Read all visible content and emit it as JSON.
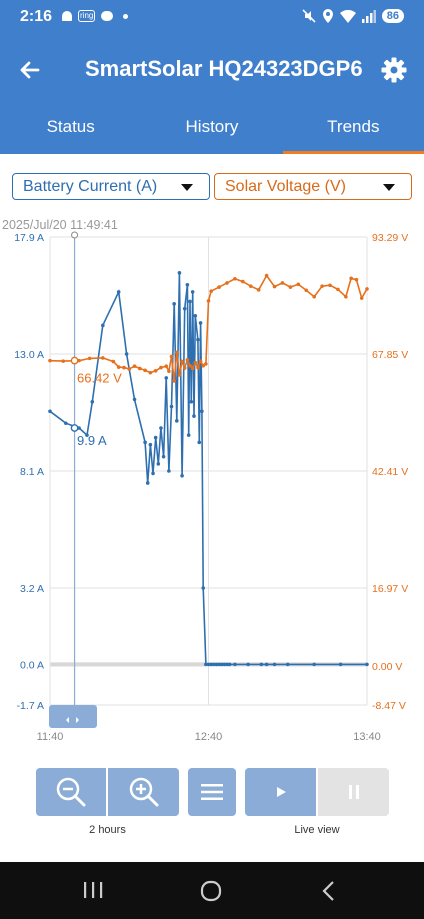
{
  "status_bar": {
    "time": "2:16",
    "ring_badge": "ring",
    "battery_level": "86",
    "icons": [
      "bell-icon",
      "ring-icon",
      "chat-icon",
      "dot-icon",
      "mute-icon",
      "location-icon",
      "wifi-icon",
      "signal-icon",
      "battery-icon"
    ]
  },
  "app_bar": {
    "title": "SmartSolar HQ24323DGP6",
    "back_icon": "arrow-left-icon",
    "settings_icon": "gear-icon"
  },
  "tabs": [
    {
      "label": "Status",
      "active": false
    },
    {
      "label": "History",
      "active": false
    },
    {
      "label": "Trends",
      "active": true
    }
  ],
  "selectors": {
    "left": {
      "value": "Battery Current (A)",
      "color": "#2f6fb0"
    },
    "right": {
      "value": "Solar Voltage (V)",
      "color": "#d86a1a"
    }
  },
  "chart_data": {
    "type": "line",
    "cursor_timestamp": "2025/Jul/20 11:49:41",
    "x_ticks": [
      "11:40",
      "12:40",
      "13:40"
    ],
    "left_axis": {
      "ticks": [
        "17.9 A",
        "13.0 A",
        "8.1 A",
        "3.2 A",
        "0.0 A",
        "-1.7 A"
      ],
      "ylim": [
        -1.7,
        17.9
      ]
    },
    "right_axis": {
      "ticks": [
        "93.29 V",
        "67.85 V",
        "42.41 V",
        "16.97 V",
        "0.00 V",
        "-8.47 V"
      ],
      "ylim": [
        -8.47,
        93.29
      ]
    },
    "cursor_labels": {
      "current": "9.9 A",
      "voltage": "66.42 V"
    },
    "colors": {
      "current": "#2e6fb0",
      "voltage": "#e5701e"
    },
    "series": [
      {
        "unit": "A",
        "x_minutes": [
          0,
          6,
          11,
          14,
          16,
          20,
          26,
          29,
          32,
          36,
          37,
          38,
          39,
          40,
          41,
          42,
          43,
          44,
          45,
          46,
          47,
          48,
          49,
          50,
          51,
          52,
          52.5,
          53,
          53.5,
          54,
          54.5,
          55,
          56,
          56.5,
          57,
          57.5,
          58,
          59,
          60,
          61,
          62,
          63,
          64,
          65,
          66,
          67,
          68,
          70,
          75,
          80,
          82,
          85,
          90,
          100,
          110,
          120
        ],
        "values": [
          10.6,
          10.1,
          9.9,
          9.6,
          11.0,
          14.2,
          15.6,
          13.0,
          11.1,
          9.3,
          7.6,
          9.2,
          8.0,
          9.5,
          8.4,
          9.9,
          8.7,
          12.0,
          8.1,
          10.8,
          15.1,
          10.2,
          16.4,
          7.9,
          14.9,
          15.9,
          9.6,
          15.2,
          11.0,
          15.6,
          10.4,
          14.6,
          13.6,
          9.3,
          14.3,
          10.6,
          3.2,
          0.0,
          0.0,
          0.0,
          0.0,
          0.0,
          0.0,
          0.0,
          0.0,
          0.0,
          0.0,
          0.0,
          0.0,
          0.0,
          0.0,
          0.0,
          0.0,
          0.0,
          0.0,
          0.0
        ]
      },
      {
        "unit": "V",
        "x_minutes": [
          0,
          5,
          11,
          15,
          20,
          24,
          26,
          28,
          30,
          32,
          34,
          36,
          38,
          40,
          42,
          44,
          45,
          46,
          47,
          48,
          49,
          50,
          51,
          52,
          53,
          54,
          55,
          56,
          57,
          58,
          59,
          60,
          61,
          64,
          67,
          70,
          73,
          76,
          79,
          82,
          85,
          88,
          91,
          94,
          97,
          100,
          103,
          106,
          109,
          112,
          114,
          116,
          118,
          120
        ],
        "values": [
          66.4,
          66.3,
          66.4,
          66.9,
          67.0,
          66.2,
          65.0,
          64.9,
          64.6,
          65.2,
          64.7,
          64.3,
          63.8,
          64.2,
          64.9,
          65.2,
          64.1,
          67.3,
          62.0,
          68.2,
          63.3,
          66.2,
          64.8,
          66.6,
          65.3,
          64.7,
          66.0,
          64.9,
          66.3,
          65.3,
          65.7,
          79.4,
          81.5,
          82.4,
          83.3,
          84.2,
          83.6,
          82.6,
          81.8,
          84.9,
          82.5,
          83.3,
          82.4,
          83.0,
          81.7,
          80.3,
          82.6,
          82.8,
          81.9,
          80.3,
          84.3,
          84.0,
          80.0,
          82.0
        ]
      }
    ]
  },
  "controls": {
    "zoom_label": "2 hours",
    "live_label": "Live view",
    "icons": [
      "zoom-out-icon",
      "zoom-in-icon",
      "menu-icon",
      "play-icon",
      "pause-icon"
    ]
  },
  "nav": {
    "icons": [
      "recent-apps-icon",
      "home-icon",
      "back-icon"
    ]
  }
}
